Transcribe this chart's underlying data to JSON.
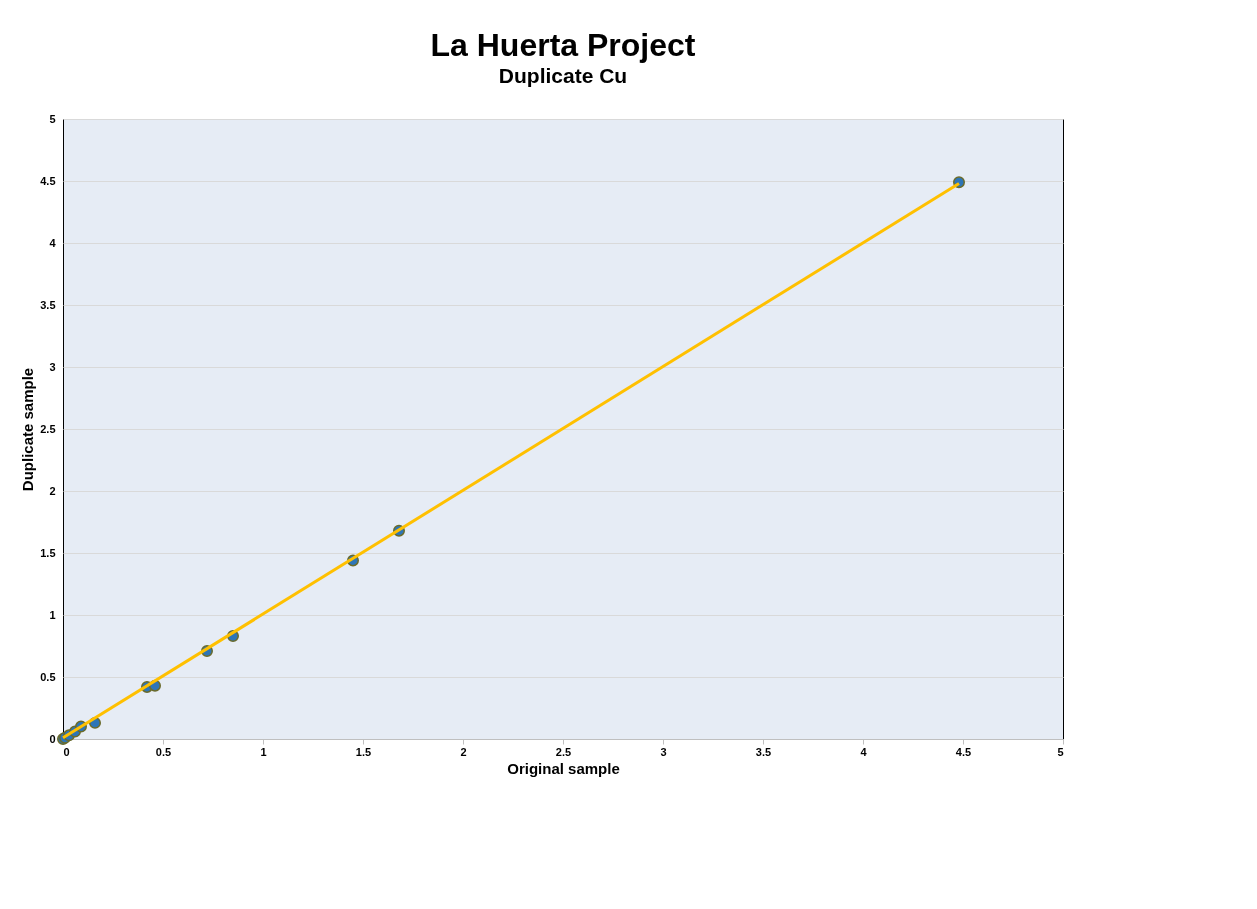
{
  "chart_data": {
    "type": "scatter",
    "title": "La Huerta Project",
    "subtitle": "Duplicate Cu",
    "xlabel": "Original sample",
    "ylabel": "Duplicate sample",
    "series": [
      {
        "color": "#2e75b6",
        "x": [
          0,
          0.01,
          0.03,
          0.06,
          0.09,
          0.16,
          0.42,
          0.46,
          0.72,
          0.85,
          1.45,
          1.68,
          4.48
        ],
        "values": [
          0,
          0.01,
          0.03,
          0.06,
          0.1,
          0.13,
          0.42,
          0.43,
          0.71,
          0.83,
          1.44,
          1.68,
          4.49
        ]
      },
      {
        "type": "line",
        "marker": "none",
        "color": "#ffc000",
        "x": [
          0,
          4.48
        ],
        "values": [
          0.01,
          4.48
        ]
      }
    ],
    "xlim": [
      0,
      5
    ],
    "xticks": [
      0,
      0.5,
      1,
      1.5,
      2,
      2.5,
      3,
      3.5,
      4,
      4.5,
      5
    ],
    "ylim": [
      0,
      5
    ],
    "yticks": [
      0,
      0.5,
      1,
      1.5,
      2,
      2.5,
      3,
      3.5,
      4,
      4.5,
      5
    ],
    "grid": "y",
    "marker": "circle",
    "line_style": "solid"
  }
}
